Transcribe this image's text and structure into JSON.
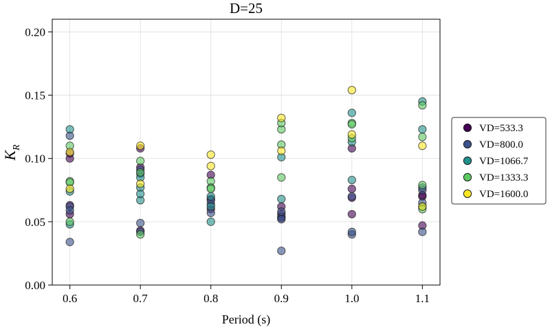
{
  "chart_data": {
    "type": "scatter",
    "title": "D=25",
    "xlabel": "Period (s)",
    "ylabel": "K_R",
    "xlim": [
      0.575,
      1.125
    ],
    "ylim": [
      0.0,
      0.21
    ],
    "xticks": [
      "0.6",
      "0.7",
      "0.8",
      "0.9",
      "1.0",
      "1.1"
    ],
    "yticks": [
      "0.00",
      "0.05",
      "0.10",
      "0.15",
      "0.20"
    ],
    "grid": true,
    "legend_position": "right-outside",
    "series": [
      {
        "name": "VD=533.3",
        "color": "#440154",
        "points": [
          [
            0.6,
            0.1
          ],
          [
            0.6,
            0.056
          ],
          [
            0.6,
            0.063
          ],
          [
            0.6,
            0.104
          ],
          [
            0.7,
            0.108
          ],
          [
            0.7,
            0.093
          ],
          [
            0.7,
            0.043
          ],
          [
            0.8,
            0.087
          ],
          [
            0.8,
            0.068
          ],
          [
            0.8,
            0.06
          ],
          [
            0.9,
            0.062
          ],
          [
            0.9,
            0.056
          ],
          [
            0.9,
            0.053
          ],
          [
            1.0,
            0.108
          ],
          [
            1.0,
            0.056
          ],
          [
            1.0,
            0.076
          ],
          [
            1.0,
            0.069
          ],
          [
            1.1,
            0.047
          ],
          [
            1.1,
            0.07
          ],
          [
            1.1,
            0.071
          ]
        ]
      },
      {
        "name": "VD=800.0",
        "color": "#3b528b",
        "points": [
          [
            0.6,
            0.118
          ],
          [
            0.6,
            0.034
          ],
          [
            0.6,
            0.062
          ],
          [
            0.6,
            0.059
          ],
          [
            0.7,
            0.049
          ],
          [
            0.7,
            0.091
          ],
          [
            0.7,
            0.088
          ],
          [
            0.7,
            0.042
          ],
          [
            0.8,
            0.057
          ],
          [
            0.8,
            0.064
          ],
          [
            0.8,
            0.067
          ],
          [
            0.9,
            0.027
          ],
          [
            0.9,
            0.054
          ],
          [
            0.9,
            0.052
          ],
          [
            0.9,
            0.058
          ],
          [
            1.0,
            0.04
          ],
          [
            1.0,
            0.042
          ],
          [
            1.0,
            0.07
          ],
          [
            1.1,
            0.042
          ],
          [
            1.1,
            0.075
          ],
          [
            1.1,
            0.077
          ],
          [
            1.1,
            0.065
          ]
        ]
      },
      {
        "name": "VD=1066.7",
        "color": "#21918c",
        "points": [
          [
            0.6,
            0.123
          ],
          [
            0.6,
            0.074
          ],
          [
            0.6,
            0.048
          ],
          [
            0.7,
            0.067
          ],
          [
            0.7,
            0.077
          ],
          [
            0.7,
            0.072
          ],
          [
            0.7,
            0.085
          ],
          [
            0.8,
            0.05
          ],
          [
            0.8,
            0.062
          ],
          [
            0.8,
            0.07
          ],
          [
            0.9,
            0.101
          ],
          [
            0.9,
            0.068
          ],
          [
            1.0,
            0.136
          ],
          [
            1.0,
            0.083
          ],
          [
            1.0,
            0.113
          ],
          [
            1.1,
            0.145
          ],
          [
            1.1,
            0.123
          ],
          [
            1.1,
            0.062
          ]
        ]
      },
      {
        "name": "VD=1333.3",
        "color": "#5ec962",
        "points": [
          [
            0.6,
            0.082
          ],
          [
            0.6,
            0.081
          ],
          [
            0.6,
            0.11
          ],
          [
            0.6,
            0.05
          ],
          [
            0.7,
            0.098
          ],
          [
            0.7,
            0.089
          ],
          [
            0.7,
            0.04
          ],
          [
            0.8,
            0.082
          ],
          [
            0.8,
            0.077
          ],
          [
            0.8,
            0.076
          ],
          [
            0.9,
            0.111
          ],
          [
            0.9,
            0.123
          ],
          [
            0.9,
            0.085
          ],
          [
            0.9,
            0.128
          ],
          [
            1.0,
            0.128
          ],
          [
            1.0,
            0.127
          ],
          [
            1.0,
            0.116
          ],
          [
            1.1,
            0.142
          ],
          [
            1.1,
            0.117
          ],
          [
            1.1,
            0.079
          ],
          [
            1.1,
            0.06
          ]
        ]
      },
      {
        "name": "VD=1600.0",
        "color": "#fde725",
        "points": [
          [
            0.6,
            0.105
          ],
          [
            0.6,
            0.076
          ],
          [
            0.7,
            0.11
          ],
          [
            0.7,
            0.08
          ],
          [
            0.8,
            0.103
          ],
          [
            0.8,
            0.094
          ],
          [
            0.9,
            0.132
          ],
          [
            0.9,
            0.106
          ],
          [
            1.0,
            0.154
          ],
          [
            1.0,
            0.119
          ],
          [
            1.1,
            0.11
          ],
          [
            1.1,
            0.062
          ]
        ]
      }
    ]
  }
}
